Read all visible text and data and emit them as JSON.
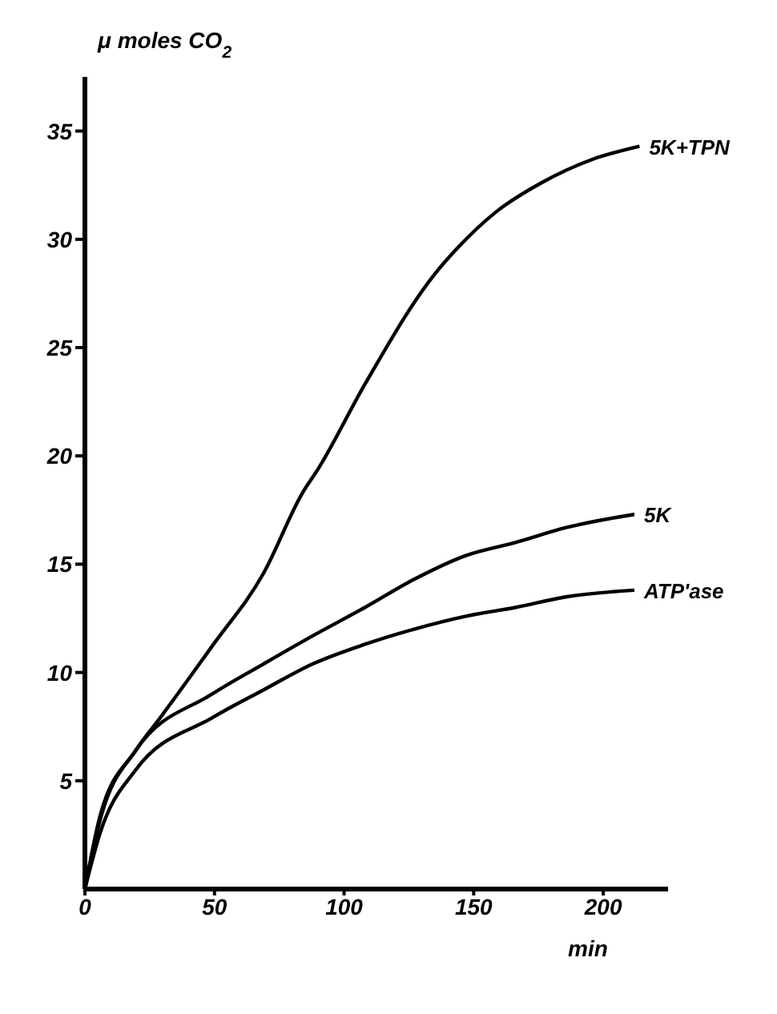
{
  "chart_data": {
    "type": "line",
    "xlabel": "min",
    "ylabel": "μ moles CO$_{2}$",
    "xlim": [
      0,
      225
    ],
    "xticks": [
      0,
      50,
      100,
      150,
      200
    ],
    "ylim": [
      0,
      37.5
    ],
    "yticks": [
      5,
      10,
      15,
      20,
      25,
      30,
      35
    ],
    "grid": false,
    "legend": false,
    "marker": "none",
    "line_style": "solid",
    "series": [
      {
        "name": "5K+TPN",
        "color": "#000000",
        "x": [
          0,
          5.9,
          19.6,
          29,
          49,
          69,
          84,
          90,
          108,
          135,
          143,
          159,
          176,
          196,
          214
        ],
        "values": [
          0,
          3.4,
          6.4,
          7.9,
          11.2,
          14.6,
          18.3,
          19.4,
          23.3,
          28.4,
          29.5,
          31.3,
          32.6,
          33.7,
          34.3
        ]
      },
      {
        "name": "5K",
        "color": "#000000",
        "x": [
          0,
          5.9,
          19.6,
          49,
          69,
          88,
          108,
          127,
          147,
          166,
          186,
          212
        ],
        "values": [
          0,
          3.2,
          6.4,
          9.0,
          10.4,
          11.7,
          13.0,
          14.3,
          15.4,
          16.0,
          16.7,
          17.3
        ]
      },
      {
        "name": "ATP'ase",
        "color": "#000000",
        "x": [
          0,
          5.9,
          19.6,
          49,
          69,
          88,
          108,
          127,
          147,
          166,
          186,
          212
        ],
        "values": [
          0,
          2.6,
          5.5,
          7.9,
          9.2,
          10.4,
          11.3,
          12.0,
          12.6,
          13.0,
          13.5,
          13.8
        ]
      }
    ]
  }
}
